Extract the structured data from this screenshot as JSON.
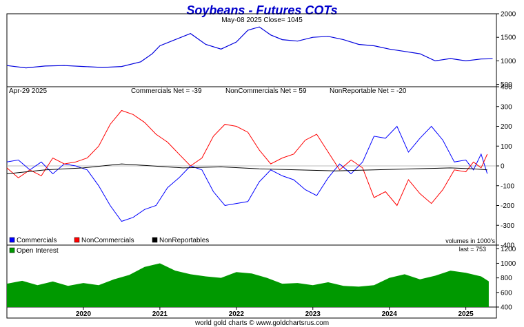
{
  "title": "Soybeans - Futures COTs",
  "footer": "world gold charts © www.goldchartsrus.com",
  "colors": {
    "price": "#0000dd",
    "commercials": "#0000ff",
    "noncommercials": "#ff0000",
    "nonreportables": "#000000",
    "open_interest": "#009900",
    "title": "#0000cc"
  },
  "chart_data": [
    {
      "type": "line",
      "panel": "price",
      "header": "May-08  2025  Close= 1045",
      "yticks": [
        "2000",
        "1500",
        "1000",
        "500"
      ],
      "ylim": [
        450,
        2000
      ],
      "x_domain": [
        2019.0,
        2025.4
      ],
      "series": [
        {
          "x": [
            2019.0,
            2019.25,
            2019.5,
            2019.75,
            2020.0,
            2020.25,
            2020.5,
            2020.75,
            2020.9,
            2021.0,
            2021.2,
            2021.4,
            2021.6,
            2021.8,
            2022.0,
            2022.15,
            2022.3,
            2022.45,
            2022.6,
            2022.8,
            2023.0,
            2023.2,
            2023.4,
            2023.6,
            2023.8,
            2024.0,
            2024.2,
            2024.4,
            2024.6,
            2024.8,
            2025.0,
            2025.2,
            2025.35
          ],
          "values": [
            900,
            850,
            890,
            900,
            880,
            860,
            880,
            980,
            1150,
            1320,
            1450,
            1580,
            1350,
            1250,
            1400,
            1650,
            1720,
            1550,
            1450,
            1420,
            1500,
            1520,
            1450,
            1350,
            1320,
            1250,
            1200,
            1150,
            1000,
            1050,
            1000,
            1040,
            1045
          ]
        }
      ]
    },
    {
      "type": "line",
      "panel": "cot",
      "date": "Apr-29  2025",
      "readouts": [
        "Commercials Net = -39",
        "NonCommercials Net = 59",
        "NonReportable Net = -20"
      ],
      "yticks": [
        "400",
        "300",
        "200",
        "100",
        "0",
        "-100",
        "-200",
        "-300",
        "-400"
      ],
      "ylim": [
        -400,
        400
      ],
      "x_domain": [
        2019.0,
        2025.4
      ],
      "legend": [
        "Commercials",
        "NonCommercials",
        "NonReportables"
      ],
      "note": "volumes in 1000's",
      "series": [
        {
          "name": "Commercials",
          "x": [
            2019.0,
            2019.15,
            2019.3,
            2019.45,
            2019.6,
            2019.75,
            2019.9,
            2020.05,
            2020.2,
            2020.35,
            2020.5,
            2020.65,
            2020.8,
            2020.95,
            2021.1,
            2021.25,
            2021.4,
            2021.55,
            2021.7,
            2021.85,
            2022.0,
            2022.15,
            2022.3,
            2022.45,
            2022.6,
            2022.75,
            2022.9,
            2023.05,
            2023.2,
            2023.35,
            2023.5,
            2023.65,
            2023.8,
            2023.95,
            2024.1,
            2024.25,
            2024.4,
            2024.55,
            2024.7,
            2024.85,
            2025.0,
            2025.1,
            2025.2,
            2025.28
          ],
          "values": [
            20,
            30,
            -20,
            20,
            -40,
            10,
            0,
            -20,
            -100,
            -200,
            -280,
            -260,
            -220,
            -200,
            -110,
            -60,
            0,
            -20,
            -130,
            -200,
            -190,
            -180,
            -80,
            -20,
            -50,
            -70,
            -120,
            -150,
            -60,
            10,
            -40,
            20,
            150,
            140,
            200,
            70,
            140,
            200,
            130,
            20,
            30,
            -20,
            60,
            -39
          ]
        },
        {
          "name": "NonCommercials",
          "x": [
            2019.0,
            2019.15,
            2019.3,
            2019.45,
            2019.6,
            2019.75,
            2019.9,
            2020.05,
            2020.2,
            2020.35,
            2020.5,
            2020.65,
            2020.8,
            2020.95,
            2021.1,
            2021.25,
            2021.4,
            2021.55,
            2021.7,
            2021.85,
            2022.0,
            2022.15,
            2022.3,
            2022.45,
            2022.6,
            2022.75,
            2022.9,
            2023.05,
            2023.2,
            2023.35,
            2023.5,
            2023.65,
            2023.8,
            2023.95,
            2024.1,
            2024.25,
            2024.4,
            2024.55,
            2024.7,
            2024.85,
            2025.0,
            2025.1,
            2025.2,
            2025.28
          ],
          "values": [
            -10,
            -60,
            -20,
            -50,
            40,
            10,
            20,
            40,
            100,
            210,
            280,
            260,
            220,
            160,
            120,
            60,
            0,
            40,
            150,
            210,
            200,
            170,
            80,
            10,
            40,
            60,
            130,
            160,
            70,
            -20,
            30,
            -10,
            -160,
            -130,
            -200,
            -70,
            -140,
            -190,
            -120,
            -20,
            -30,
            20,
            -10,
            59
          ]
        },
        {
          "name": "NonReportables",
          "x": [
            2019.0,
            2019.5,
            2020.0,
            2020.5,
            2020.9,
            2021.3,
            2021.8,
            2022.3,
            2022.8,
            2023.3,
            2023.8,
            2024.3,
            2024.8,
            2025.1,
            2025.28
          ],
          "values": [
            -40,
            -20,
            -10,
            10,
            0,
            -10,
            -5,
            -15,
            -20,
            -25,
            -20,
            -15,
            -10,
            -15,
            -20
          ]
        }
      ]
    },
    {
      "type": "area",
      "panel": "open_interest",
      "legend": [
        "Open Interest"
      ],
      "last_label": "last = 753",
      "yticks": [
        "1200",
        "1000",
        "800",
        "600",
        "400"
      ],
      "ylim": [
        400,
        1250
      ],
      "x_domain": [
        2019.0,
        2025.4
      ],
      "series": [
        {
          "name": "Open Interest",
          "x": [
            2019.0,
            2019.2,
            2019.4,
            2019.6,
            2019.8,
            2020.0,
            2020.2,
            2020.4,
            2020.6,
            2020.8,
            2021.0,
            2021.2,
            2021.4,
            2021.6,
            2021.8,
            2022.0,
            2022.2,
            2022.4,
            2022.6,
            2022.8,
            2023.0,
            2023.2,
            2023.4,
            2023.6,
            2023.8,
            2024.0,
            2024.2,
            2024.4,
            2024.6,
            2024.8,
            2025.0,
            2025.2,
            2025.3
          ],
          "values": [
            720,
            760,
            700,
            750,
            690,
            730,
            700,
            780,
            840,
            950,
            1000,
            900,
            850,
            820,
            800,
            880,
            860,
            800,
            720,
            730,
            700,
            740,
            690,
            680,
            700,
            800,
            850,
            780,
            830,
            900,
            870,
            820,
            753
          ]
        }
      ]
    },
    {
      "type": "axis",
      "panel": "time",
      "labels": [
        "2020",
        "2021",
        "2022",
        "2023",
        "2024",
        "2025"
      ],
      "positions": [
        2020,
        2021,
        2022,
        2023,
        2024,
        2025
      ]
    }
  ]
}
